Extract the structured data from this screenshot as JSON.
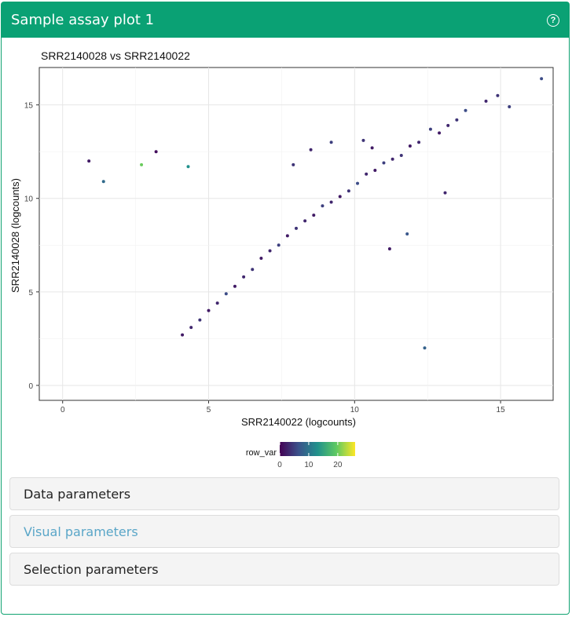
{
  "panel": {
    "title": "Sample assay plot 1",
    "help_icon": "question-circle-icon"
  },
  "chart_data": {
    "type": "scatter",
    "title": "SRR2140028 vs SRR2140022",
    "xlabel": "SRR2140022 (logcounts)",
    "ylabel": "SRR2140028 (logcounts)",
    "xlim": [
      -0.8,
      16.8
    ],
    "ylim": [
      -0.8,
      17.0
    ],
    "xticks": [
      0,
      5,
      10,
      15
    ],
    "yticks": [
      0,
      5,
      10,
      15
    ],
    "grid": true,
    "legend": {
      "title": "row_var",
      "ticks": [
        "0",
        "10",
        "20"
      ],
      "range": [
        0,
        26
      ],
      "placement": "bottom"
    },
    "colors": [
      "#440154",
      "#3b528b",
      "#21918c",
      "#5ec962",
      "#fde725"
    ],
    "points": [
      [
        16.4,
        16.4,
        6
      ],
      [
        15.3,
        14.9,
        5
      ],
      [
        14.9,
        15.5,
        4
      ],
      [
        14.5,
        15.2,
        3
      ],
      [
        13.8,
        14.7,
        6
      ],
      [
        13.5,
        14.2,
        4
      ],
      [
        13.2,
        13.9,
        3
      ],
      [
        12.9,
        13.5,
        2
      ],
      [
        12.6,
        13.7,
        5
      ],
      [
        12.2,
        13.0,
        3
      ],
      [
        11.9,
        12.8,
        2
      ],
      [
        11.6,
        12.3,
        4
      ],
      [
        11.3,
        12.1,
        3
      ],
      [
        11.0,
        11.9,
        5
      ],
      [
        10.7,
        11.5,
        2
      ],
      [
        10.4,
        11.3,
        3
      ],
      [
        10.1,
        10.8,
        6
      ],
      [
        9.8,
        10.4,
        4
      ],
      [
        9.5,
        10.1,
        2
      ],
      [
        9.2,
        9.8,
        3
      ],
      [
        8.9,
        9.6,
        5
      ],
      [
        8.6,
        9.1,
        2
      ],
      [
        8.3,
        8.8,
        3
      ],
      [
        8.0,
        8.4,
        4
      ],
      [
        7.7,
        8.0,
        2
      ],
      [
        7.4,
        7.5,
        5
      ],
      [
        7.1,
        7.2,
        3
      ],
      [
        6.8,
        6.8,
        2
      ],
      [
        6.5,
        6.2,
        4
      ],
      [
        6.2,
        5.8,
        3
      ],
      [
        5.9,
        5.3,
        2
      ],
      [
        5.6,
        4.9,
        6
      ],
      [
        5.3,
        4.4,
        3
      ],
      [
        5.0,
        4.0,
        2
      ],
      [
        4.7,
        3.5,
        4
      ],
      [
        4.4,
        3.1,
        3
      ],
      [
        4.1,
        2.7,
        2
      ],
      [
        12.4,
        2.0,
        8
      ],
      [
        13.1,
        10.3,
        3
      ],
      [
        10.3,
        13.1,
        4
      ],
      [
        11.8,
        8.1,
        7
      ],
      [
        11.2,
        7.3,
        2
      ],
      [
        3.2,
        12.5,
        1
      ],
      [
        0.9,
        12.0,
        2
      ],
      [
        7.9,
        11.8,
        4
      ],
      [
        8.5,
        12.6,
        3
      ],
      [
        9.2,
        13.0,
        5
      ],
      [
        10.6,
        12.7,
        2
      ],
      [
        4.3,
        11.7,
        13
      ],
      [
        2.7,
        11.8,
        20
      ],
      [
        1.4,
        10.9,
        9
      ]
    ]
  },
  "accordions": {
    "data": "Data parameters",
    "visual": "Visual parameters",
    "selection": "Selection parameters"
  }
}
